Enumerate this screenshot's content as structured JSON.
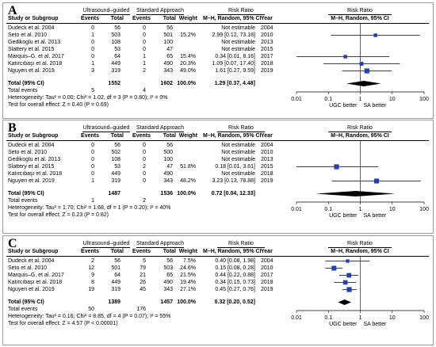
{
  "panels": [
    {
      "letter": "A",
      "group1": "Ultrasound–guided",
      "group2": "Standard Approach",
      "rr_header": "Risk Ratio",
      "rr_sub": "M–H, Random, 95% CI",
      "headers": [
        "Study or Subgroup",
        "Events",
        "Total",
        "Events",
        "Total",
        "Weight",
        "M–H, Random, 95% CI",
        "Year",
        "M–H, Random, 95% CI"
      ],
      "rows": [
        {
          "study": "Dudeck et al. 2004",
          "e1": "0",
          "t1": "56",
          "e2": "0",
          "t2": "56",
          "weight": "",
          "rr": "Not estimable",
          "year": "2004"
        },
        {
          "study": "Seto et al. 2010",
          "e1": "1",
          "t1": "503",
          "e2": "0",
          "t2": "501",
          "weight": "15.2%",
          "rr": "2.99 [0.12, 73.18]",
          "year": "2010"
        },
        {
          "study": "Gedikoglu et al. 2013",
          "e1": "0",
          "t1": "108",
          "e2": "0",
          "t2": "100",
          "weight": "",
          "rr": "Not estimable",
          "year": "2013"
        },
        {
          "study": "Slattery et al. 2015",
          "e1": "0",
          "t1": "53",
          "e2": "0",
          "t2": "47",
          "weight": "",
          "rr": "Not estimable",
          "year": "2015"
        },
        {
          "study": "Marquis–G. et al. 2017",
          "e1": "0",
          "t1": "64",
          "e2": "1",
          "t2": "65",
          "weight": "15.4%",
          "rr": "0.34 [0.01, 8.16]",
          "year": "2017"
        },
        {
          "study": "Katırcıbaşı et al. 2018",
          "e1": "1",
          "t1": "449",
          "e2": "1",
          "t2": "490",
          "weight": "20.3%",
          "rr": "1.09 [0.07, 17.40]",
          "year": "2018"
        },
        {
          "study": "Nguyen et al. 2019",
          "e1": "3",
          "t1": "319",
          "e2": "2",
          "t2": "343",
          "weight": "49.0%",
          "rr": "1.61 [0.27, 9.59]",
          "year": "2019"
        }
      ],
      "total_label": "Total (95% CI)",
      "total_n1": "1552",
      "total_n2": "1602",
      "total_weight": "100.0%",
      "total_rr": "1.29 [0.37, 4.48]",
      "events_label": "Total events",
      "total_e1": "5",
      "total_e2": "4",
      "heterogeneity": "Heterogeneity: Tau² = 0.00; Chi² = 1.02, df = 3 (P = 0.80); I² = 0%",
      "overall": "Test for overall effect: Z = 0.40 (P = 0.69)",
      "tick_labels": [
        "0.01",
        "0.1",
        "1",
        "10",
        "100"
      ],
      "favours_left": "UGC better",
      "favours_right": "SA better"
    },
    {
      "letter": "B",
      "group1": "Ultrasound–guided",
      "group2": "Standard Approach",
      "rr_header": "Risk Ratio",
      "rr_sub": "M–H, Random, 95% CI",
      "headers": [
        "Study or Subgroup",
        "Events",
        "Total",
        "Events",
        "Total",
        "Weight",
        "M–H, Random, 95% CI",
        "Year",
        "M–H, Random, 95% CI"
      ],
      "rows": [
        {
          "study": "Dudeck et al. 2004",
          "e1": "0",
          "t1": "56",
          "e2": "0",
          "t2": "56",
          "weight": "",
          "rr": "Not estimable",
          "year": "2004"
        },
        {
          "study": "Seto et al. 2010",
          "e1": "0",
          "t1": "502",
          "e2": "0",
          "t2": "500",
          "weight": "",
          "rr": "Not estimable",
          "year": "2010"
        },
        {
          "study": "Gedikoglu et al. 2013",
          "e1": "0",
          "t1": "108",
          "e2": "0",
          "t2": "100",
          "weight": "",
          "rr": "Not estimable",
          "year": "2013"
        },
        {
          "study": "Slattery et al. 2015",
          "e1": "0",
          "t1": "53",
          "e2": "2",
          "t2": "47",
          "weight": "51.8%",
          "rr": "0.18 [0.01, 3.61]",
          "year": "2015"
        },
        {
          "study": "Katırcıbaşı et al. 2018",
          "e1": "0",
          "t1": "449",
          "e2": "0",
          "t2": "490",
          "weight": "",
          "rr": "Not estimable",
          "year": "2018"
        },
        {
          "study": "Nguyen et al. 2019",
          "e1": "1",
          "t1": "319",
          "e2": "0",
          "t2": "343",
          "weight": "48.2%",
          "rr": "3.23 [0.13, 78.88]",
          "year": "2019"
        }
      ],
      "total_label": "Total (95% CI)",
      "total_n1": "1487",
      "total_n2": "1536",
      "total_weight": "100.0%",
      "total_rr": "0.72 [0.04, 12.33]",
      "events_label": "Total events",
      "total_e1": "1",
      "total_e2": "2",
      "heterogeneity": "Heterogeneity: Tau² = 1.70; Chi² = 1.68, df = 1 (P = 0.20); I² = 40%",
      "overall": "Test for overall effect: Z = 0.23 (P = 0.82)",
      "tick_labels": [
        "0.01",
        "0.1",
        "1",
        "10",
        "100"
      ],
      "favours_left": "UGC better",
      "favours_right": "SA better"
    },
    {
      "letter": "C",
      "group1": "Ultrasound–guided",
      "group2": "Standard Approach",
      "rr_header": "Risk Ratio",
      "rr_sub": "M–H, Random, 95% CI",
      "headers": [
        "Study or Subgroup",
        "Events",
        "Total",
        "Events",
        "Total",
        "Weight",
        "M–H, Random, 95% CI",
        "Year",
        "M–H, Random, 95% CI"
      ],
      "rows": [
        {
          "study": "Dudeck et al. 2004",
          "e1": "2",
          "t1": "56",
          "e2": "5",
          "t2": "56",
          "weight": "7.5%",
          "rr": "0.40 [0.08, 1.98]",
          "year": "2004"
        },
        {
          "study": "Seto et al. 2010",
          "e1": "12",
          "t1": "501",
          "e2": "79",
          "t2": "503",
          "weight": "24.6%",
          "rr": "0.15 [0.08, 0.28]",
          "year": "2010"
        },
        {
          "study": "Marquis–G. et al. 2017",
          "e1": "9",
          "t1": "64",
          "e2": "21",
          "t2": "65",
          "weight": "21.5%",
          "rr": "0.44 [0.22, 0.88]",
          "year": "2017"
        },
        {
          "study": "Katırcıbaşı et al. 2018",
          "e1": "8",
          "t1": "449",
          "e2": "26",
          "t2": "490",
          "weight": "19.4%",
          "rr": "0.34 [0.15, 0.73]",
          "year": "2018"
        },
        {
          "study": "Nguyen et al. 2019",
          "e1": "19",
          "t1": "319",
          "e2": "45",
          "t2": "343",
          "weight": "27.1%",
          "rr": "0.45 [0.27, 0.76]",
          "year": "2019"
        }
      ],
      "total_label": "Total (95% CI)",
      "total_n1": "1389",
      "total_n2": "1457",
      "total_weight": "100.0%",
      "total_rr": "0.32 [0.20, 0.52]",
      "events_label": "Total events",
      "total_e1": "50",
      "total_e2": "176",
      "heterogeneity": "Heterogeneity: Tau² = 0.16; Chi² = 8.85, df = 4 (P = 0.07); I² = 55%",
      "overall": "Test for overall effect: Z = 4.57 (P < 0.00001)",
      "tick_labels": [
        "0.01",
        "0.1",
        "1",
        "10",
        "100"
      ],
      "favours_left": "UGC better",
      "favours_right": "SA better"
    }
  ],
  "colors": {
    "marker": "#1f3fb8",
    "axis": "#000000",
    "border": "#9a9a9a"
  },
  "chart_data": [
    {
      "type": "scatter",
      "subtype": "forest-plot",
      "scale": "log",
      "xlim": [
        0.01,
        100
      ],
      "reference": 1,
      "points": [
        {
          "study": "Seto et al. 2010",
          "rr": 2.99,
          "lo": 0.12,
          "hi": 73.18,
          "weight": 15.2
        },
        {
          "study": "Marquis–G. et al. 2017",
          "rr": 0.34,
          "lo": 0.01,
          "hi": 8.16,
          "weight": 15.4
        },
        {
          "study": "Katırcıbaşı et al. 2018",
          "rr": 1.09,
          "lo": 0.07,
          "hi": 17.4,
          "weight": 20.3
        },
        {
          "study": "Nguyen et al. 2019",
          "rr": 1.61,
          "lo": 0.27,
          "hi": 9.59,
          "weight": 49.0
        }
      ],
      "summary": {
        "rr": 1.29,
        "lo": 0.37,
        "hi": 4.48
      }
    },
    {
      "type": "scatter",
      "subtype": "forest-plot",
      "scale": "log",
      "xlim": [
        0.01,
        100
      ],
      "reference": 1,
      "points": [
        {
          "study": "Slattery et al. 2015",
          "rr": 0.18,
          "lo": 0.01,
          "hi": 3.61,
          "weight": 51.8
        },
        {
          "study": "Nguyen et al. 2019",
          "rr": 3.23,
          "lo": 0.13,
          "hi": 78.88,
          "weight": 48.2
        }
      ],
      "summary": {
        "rr": 0.72,
        "lo": 0.04,
        "hi": 12.33
      }
    },
    {
      "type": "scatter",
      "subtype": "forest-plot",
      "scale": "log",
      "xlim": [
        0.01,
        100
      ],
      "reference": 1,
      "points": [
        {
          "study": "Dudeck et al. 2004",
          "rr": 0.4,
          "lo": 0.08,
          "hi": 1.98,
          "weight": 7.5
        },
        {
          "study": "Seto et al. 2010",
          "rr": 0.15,
          "lo": 0.08,
          "hi": 0.28,
          "weight": 24.6
        },
        {
          "study": "Marquis–G. et al. 2017",
          "rr": 0.44,
          "lo": 0.22,
          "hi": 0.88,
          "weight": 21.5
        },
        {
          "study": "Katırcıbaşı et al. 2018",
          "rr": 0.34,
          "lo": 0.15,
          "hi": 0.73,
          "weight": 19.4
        },
        {
          "study": "Nguyen et al. 2019",
          "rr": 0.45,
          "lo": 0.27,
          "hi": 0.76,
          "weight": 27.1
        }
      ],
      "summary": {
        "rr": 0.32,
        "lo": 0.2,
        "hi": 0.52
      }
    }
  ]
}
